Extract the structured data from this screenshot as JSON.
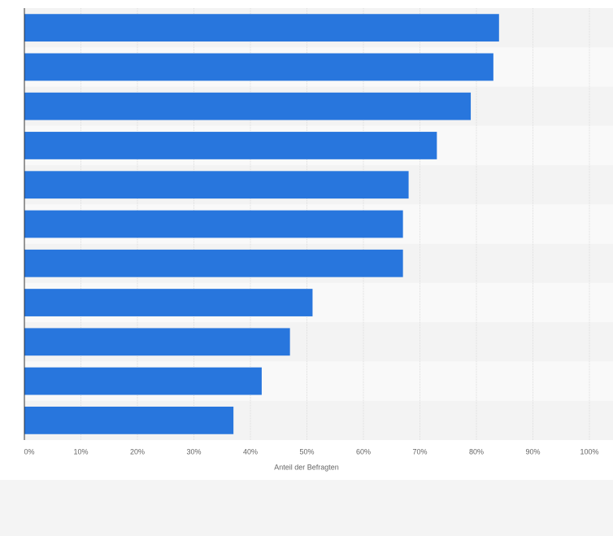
{
  "chart_data": {
    "type": "bar",
    "orientation": "horizontal",
    "xlabel": "Anteil der Befragten",
    "categories": [
      null,
      null,
      null,
      null,
      null,
      null,
      null,
      null,
      null,
      null,
      null
    ],
    "values": [
      84,
      83,
      79,
      73,
      68,
      67,
      67,
      51,
      47,
      42,
      37
    ],
    "color": "#2876dd",
    "xlim": [
      0,
      100
    ],
    "xticks": [
      {
        "value": 0,
        "label": "0%"
      },
      {
        "value": 10,
        "label": "10%"
      },
      {
        "value": 20,
        "label": "20%"
      },
      {
        "value": 30,
        "label": "30%"
      },
      {
        "value": 40,
        "label": "40%"
      },
      {
        "value": 50,
        "label": "50%"
      },
      {
        "value": 60,
        "label": "60%"
      },
      {
        "value": 70,
        "label": "70%"
      },
      {
        "value": 80,
        "label": "80%"
      },
      {
        "value": 90,
        "label": "90%"
      },
      {
        "value": 100,
        "label": "100%"
      }
    ],
    "grid": true
  }
}
